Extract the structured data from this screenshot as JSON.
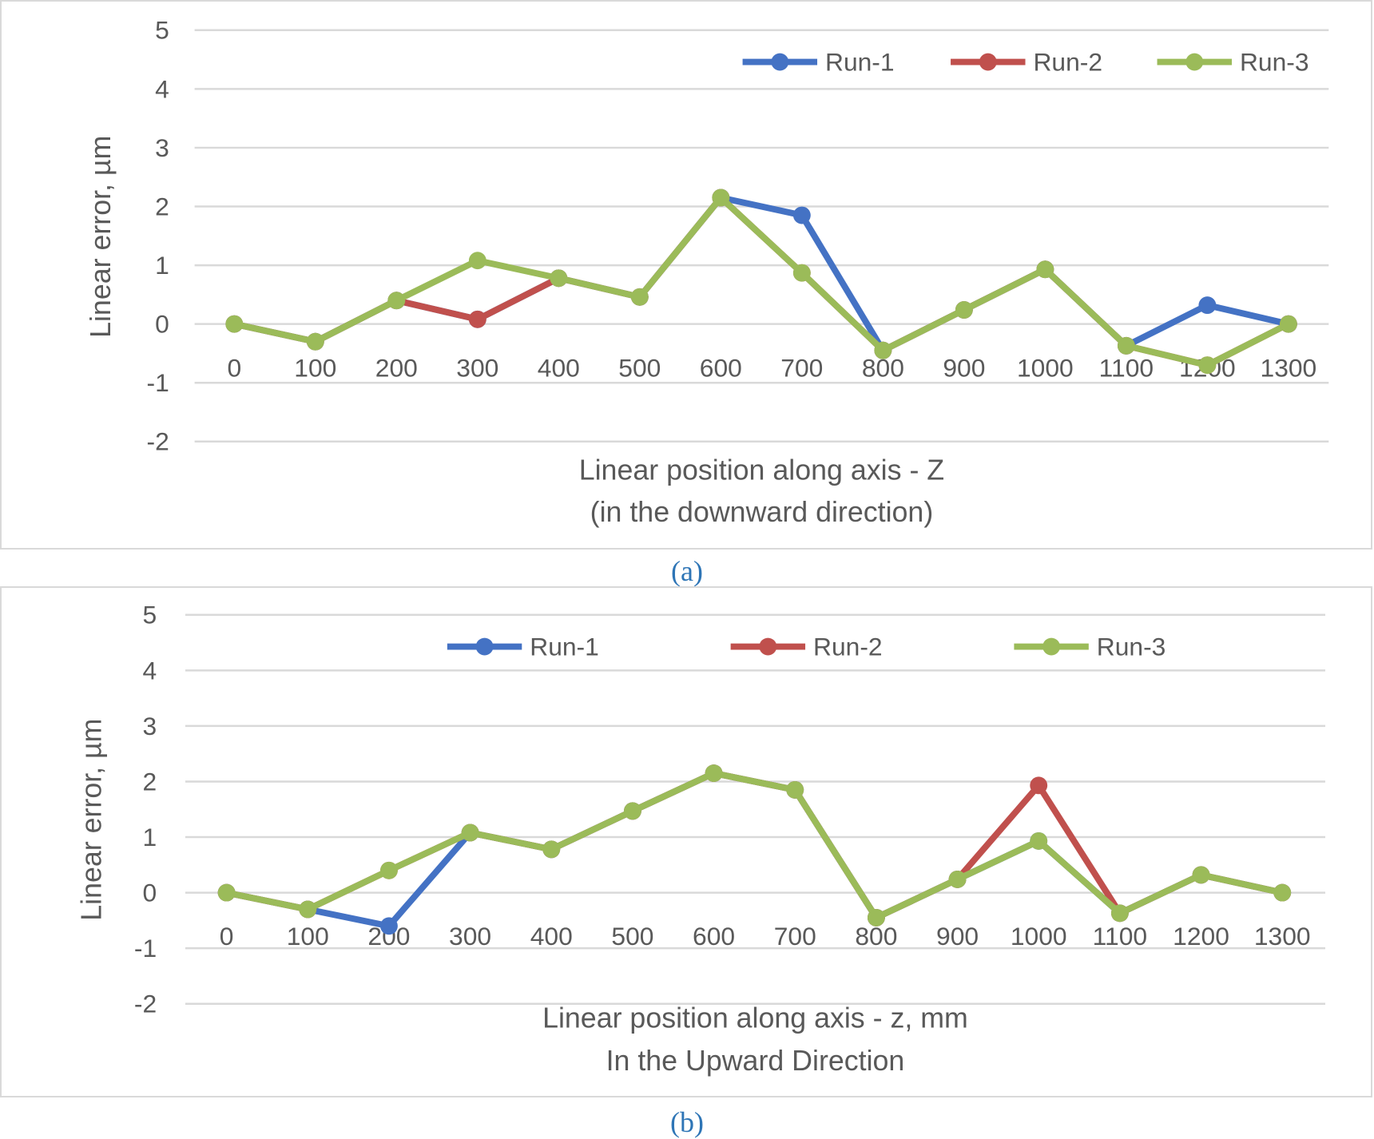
{
  "chart_data": [
    {
      "type": "line",
      "panel_label": "(a)",
      "title": "",
      "xlabel": "Linear position along axis - Z\n(in the downward direction)",
      "ylabel": "Linear error, µm",
      "categories": [
        "0",
        "100",
        "200",
        "300",
        "400",
        "500",
        "600",
        "700",
        "800",
        "900",
        "1000",
        "1100",
        "1200",
        "1300"
      ],
      "ylim": [
        -2,
        5
      ],
      "yticks": [
        5,
        4,
        3,
        2,
        1,
        0,
        -1,
        -2
      ],
      "grid": true,
      "legend_position": "top-right",
      "series": [
        {
          "name": "Run-1",
          "color": "#4472c4",
          "values": [
            0,
            -0.3,
            0.4,
            0.08,
            0.78,
            0.46,
            2.15,
            1.85,
            -0.45,
            0.24,
            0.93,
            -0.37,
            0.32,
            0
          ]
        },
        {
          "name": "Run-2",
          "color": "#c0504d",
          "values": [
            0,
            -0.3,
            0.4,
            0.08,
            0.78,
            0.46,
            2.15,
            0.87,
            -0.45,
            0.24,
            0.93,
            -0.37,
            -0.7,
            0
          ]
        },
        {
          "name": "Run-3",
          "color": "#9bbb59",
          "values": [
            0,
            -0.3,
            0.4,
            1.08,
            0.78,
            0.46,
            2.15,
            0.87,
            -0.45,
            0.24,
            0.93,
            -0.37,
            -0.7,
            0
          ]
        }
      ]
    },
    {
      "type": "line",
      "panel_label": "(b)",
      "title": "",
      "xlabel": "Linear position along axis - z, mm\nIn the Upward Direction",
      "ylabel": "Linear error, µm",
      "categories": [
        "0",
        "100",
        "200",
        "300",
        "400",
        "500",
        "600",
        "700",
        "800",
        "900",
        "1000",
        "1100",
        "1200",
        "1300"
      ],
      "ylim": [
        -2,
        5
      ],
      "yticks": [
        5,
        4,
        3,
        2,
        1,
        0,
        -1,
        -2
      ],
      "grid": true,
      "legend_position": "top-center",
      "series": [
        {
          "name": "Run-1",
          "color": "#4472c4",
          "values": [
            0,
            -0.3,
            -0.6,
            1.08,
            0.78,
            1.47,
            2.15,
            1.85,
            -0.45,
            0.24,
            0.93,
            -0.37,
            0.32,
            0
          ]
        },
        {
          "name": "Run-2",
          "color": "#c0504d",
          "values": [
            0,
            -0.3,
            0.4,
            1.08,
            0.78,
            1.47,
            2.15,
            1.85,
            -0.45,
            0.24,
            1.93,
            -0.37,
            0.32,
            0
          ]
        },
        {
          "name": "Run-3",
          "color": "#9bbb59",
          "values": [
            0,
            -0.3,
            0.4,
            1.08,
            0.78,
            1.47,
            2.15,
            1.85,
            -0.45,
            0.24,
            0.93,
            -0.37,
            0.32,
            0
          ]
        }
      ]
    }
  ]
}
